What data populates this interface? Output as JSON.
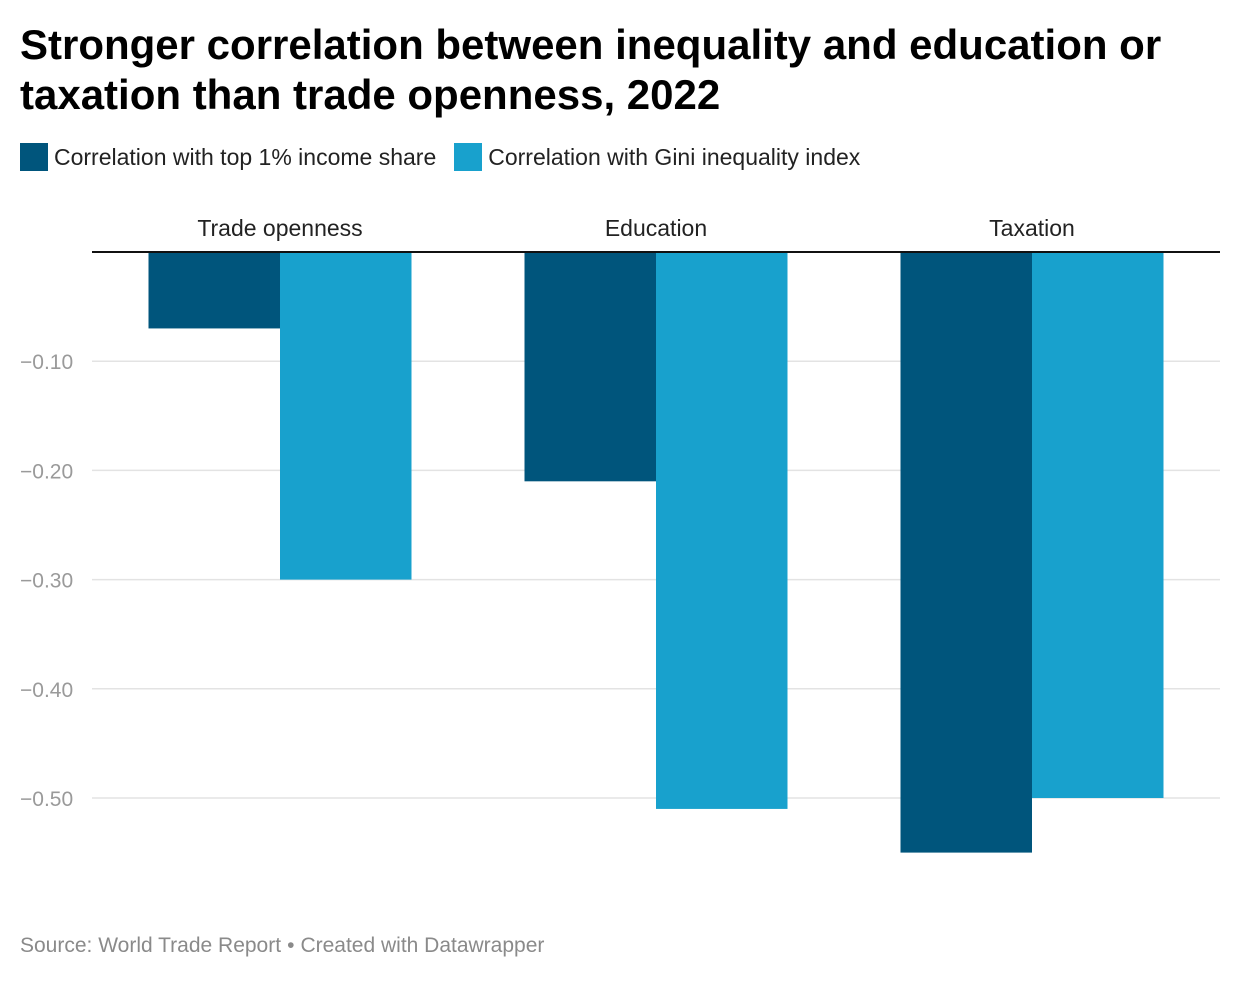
{
  "title": "Stronger correlation between inequality and education or taxation than trade openness, 2022",
  "legend": [
    {
      "label": "Correlation with top 1% income share",
      "color": "#00557c"
    },
    {
      "label": "Correlation with Gini inequality index",
      "color": "#18a1cd"
    }
  ],
  "footer": {
    "source": "Source: World Trade Report",
    "separator": "•",
    "credit": "Created with Datawrapper"
  },
  "chart_data": {
    "type": "bar",
    "categories": [
      "Trade openness",
      "Education",
      "Taxation"
    ],
    "series": [
      {
        "name": "Correlation with top 1% income share",
        "values": [
          -0.07,
          -0.21,
          -0.55
        ],
        "color": "#00557c"
      },
      {
        "name": "Correlation with Gini inequality index",
        "values": [
          -0.3,
          -0.51,
          -0.5
        ],
        "color": "#18a1cd"
      }
    ],
    "ylim": [
      -0.6,
      0
    ],
    "yticks": [
      -0.1,
      -0.2,
      -0.3,
      -0.4,
      -0.5
    ],
    "ytick_labels": [
      "−0.10",
      "−0.20",
      "−0.30",
      "−0.40",
      "−0.50"
    ],
    "category_label_position": "top",
    "grid": true,
    "legend_position": "top-left",
    "xlabel": "",
    "ylabel": ""
  }
}
